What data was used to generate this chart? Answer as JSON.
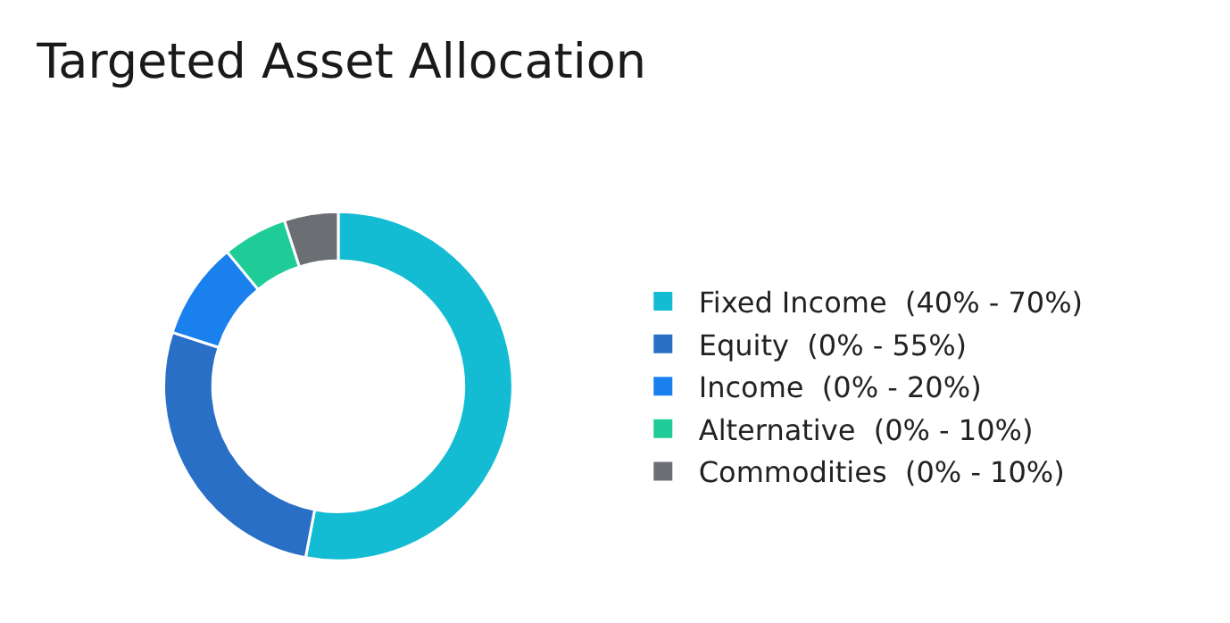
{
  "chart_data": {
    "type": "donut",
    "title": "Targeted Asset Allocation",
    "categories": [
      "Fixed Income  (40% - 70%)",
      "Equity  (0% - 55%)",
      "Income  (0% - 20%)",
      "Alternative  (0% - 10%)",
      "Commodities  (0% - 10%)"
    ],
    "values": [
      53,
      27,
      9,
      6,
      5
    ],
    "colors": [
      "#13bcd2",
      "#2a6fc6",
      "#1a80ee",
      "#1fcc98",
      "#6b6f73"
    ],
    "legend": "right"
  }
}
